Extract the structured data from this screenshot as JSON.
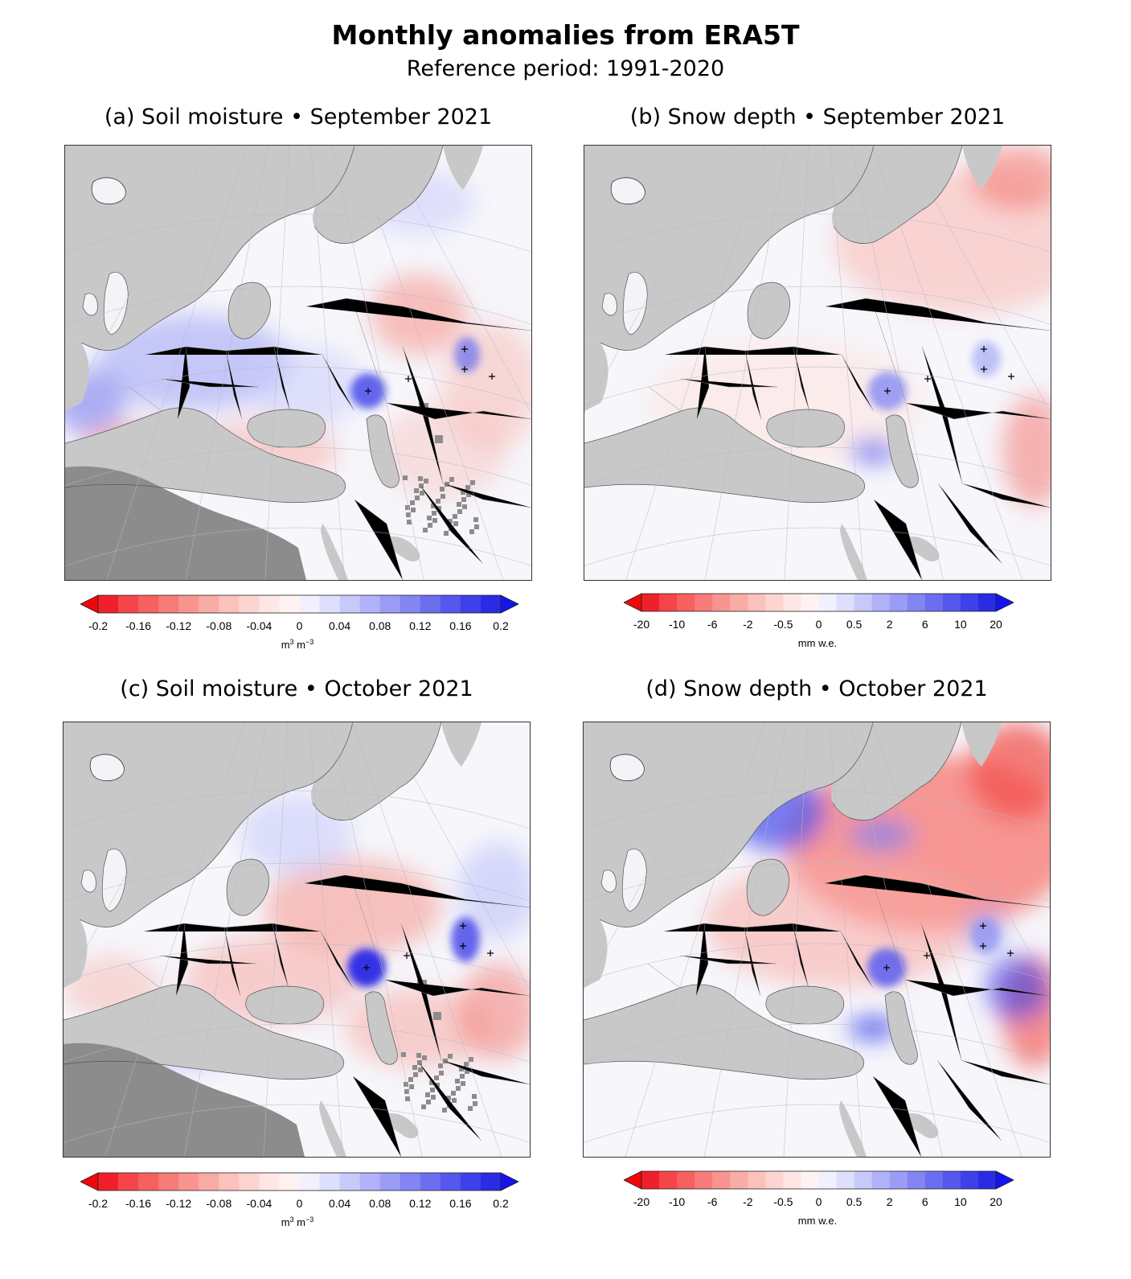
{
  "header": {
    "title": "Monthly anomalies from ERA5T",
    "subtitle": "Reference period: 1991-2020"
  },
  "colors": {
    "ocean": "#c8c8c8",
    "no_data": "#8c8c8c",
    "negative_soil": "#e8312f",
    "positive_soil": "#3a3aee",
    "negative_snow": "#e8312f",
    "positive_snow": "#2b2be6"
  },
  "panels": [
    {
      "id": "a",
      "title": "(a) Soil moisture • September 2021",
      "variable": "Soil moisture",
      "month": "September 2021",
      "colorbar": {
        "ticks": [
          "-0.2",
          "-0.16",
          "-0.12",
          "-0.08",
          "-0.04",
          "0",
          "0.04",
          "0.08",
          "0.12",
          "0.16",
          "0.2"
        ],
        "unit_base": "m",
        "unit_sup1": "3",
        "unit_mid": " m",
        "unit_sup2": "−3"
      }
    },
    {
      "id": "b",
      "title": "(b) Snow depth • September 2021",
      "variable": "Snow depth",
      "month": "September 2021",
      "colorbar": {
        "ticks": [
          "-20",
          "-10",
          "-6",
          "-2",
          "-0.5",
          "0",
          "0.5",
          "2",
          "6",
          "10",
          "20"
        ],
        "unit": "mm w.e."
      }
    },
    {
      "id": "c",
      "title": "(c) Soil moisture • October 2021",
      "variable": "Soil moisture",
      "month": "October 2021",
      "colorbar": {
        "ticks": [
          "-0.2",
          "-0.16",
          "-0.12",
          "-0.08",
          "-0.04",
          "0",
          "0.04",
          "0.08",
          "0.12",
          "0.16",
          "0.2"
        ],
        "unit_base": "m",
        "unit_sup1": "3",
        "unit_mid": " m",
        "unit_sup2": "−3"
      }
    },
    {
      "id": "d",
      "title": "(d) Snow depth • October 2021",
      "variable": "Snow depth",
      "month": "October 2021",
      "colorbar": {
        "ticks": [
          "-20",
          "-10",
          "-6",
          "-2",
          "-0.5",
          "0",
          "0.5",
          "2",
          "6",
          "10",
          "20"
        ],
        "unit": "mm w.e."
      }
    }
  ]
}
